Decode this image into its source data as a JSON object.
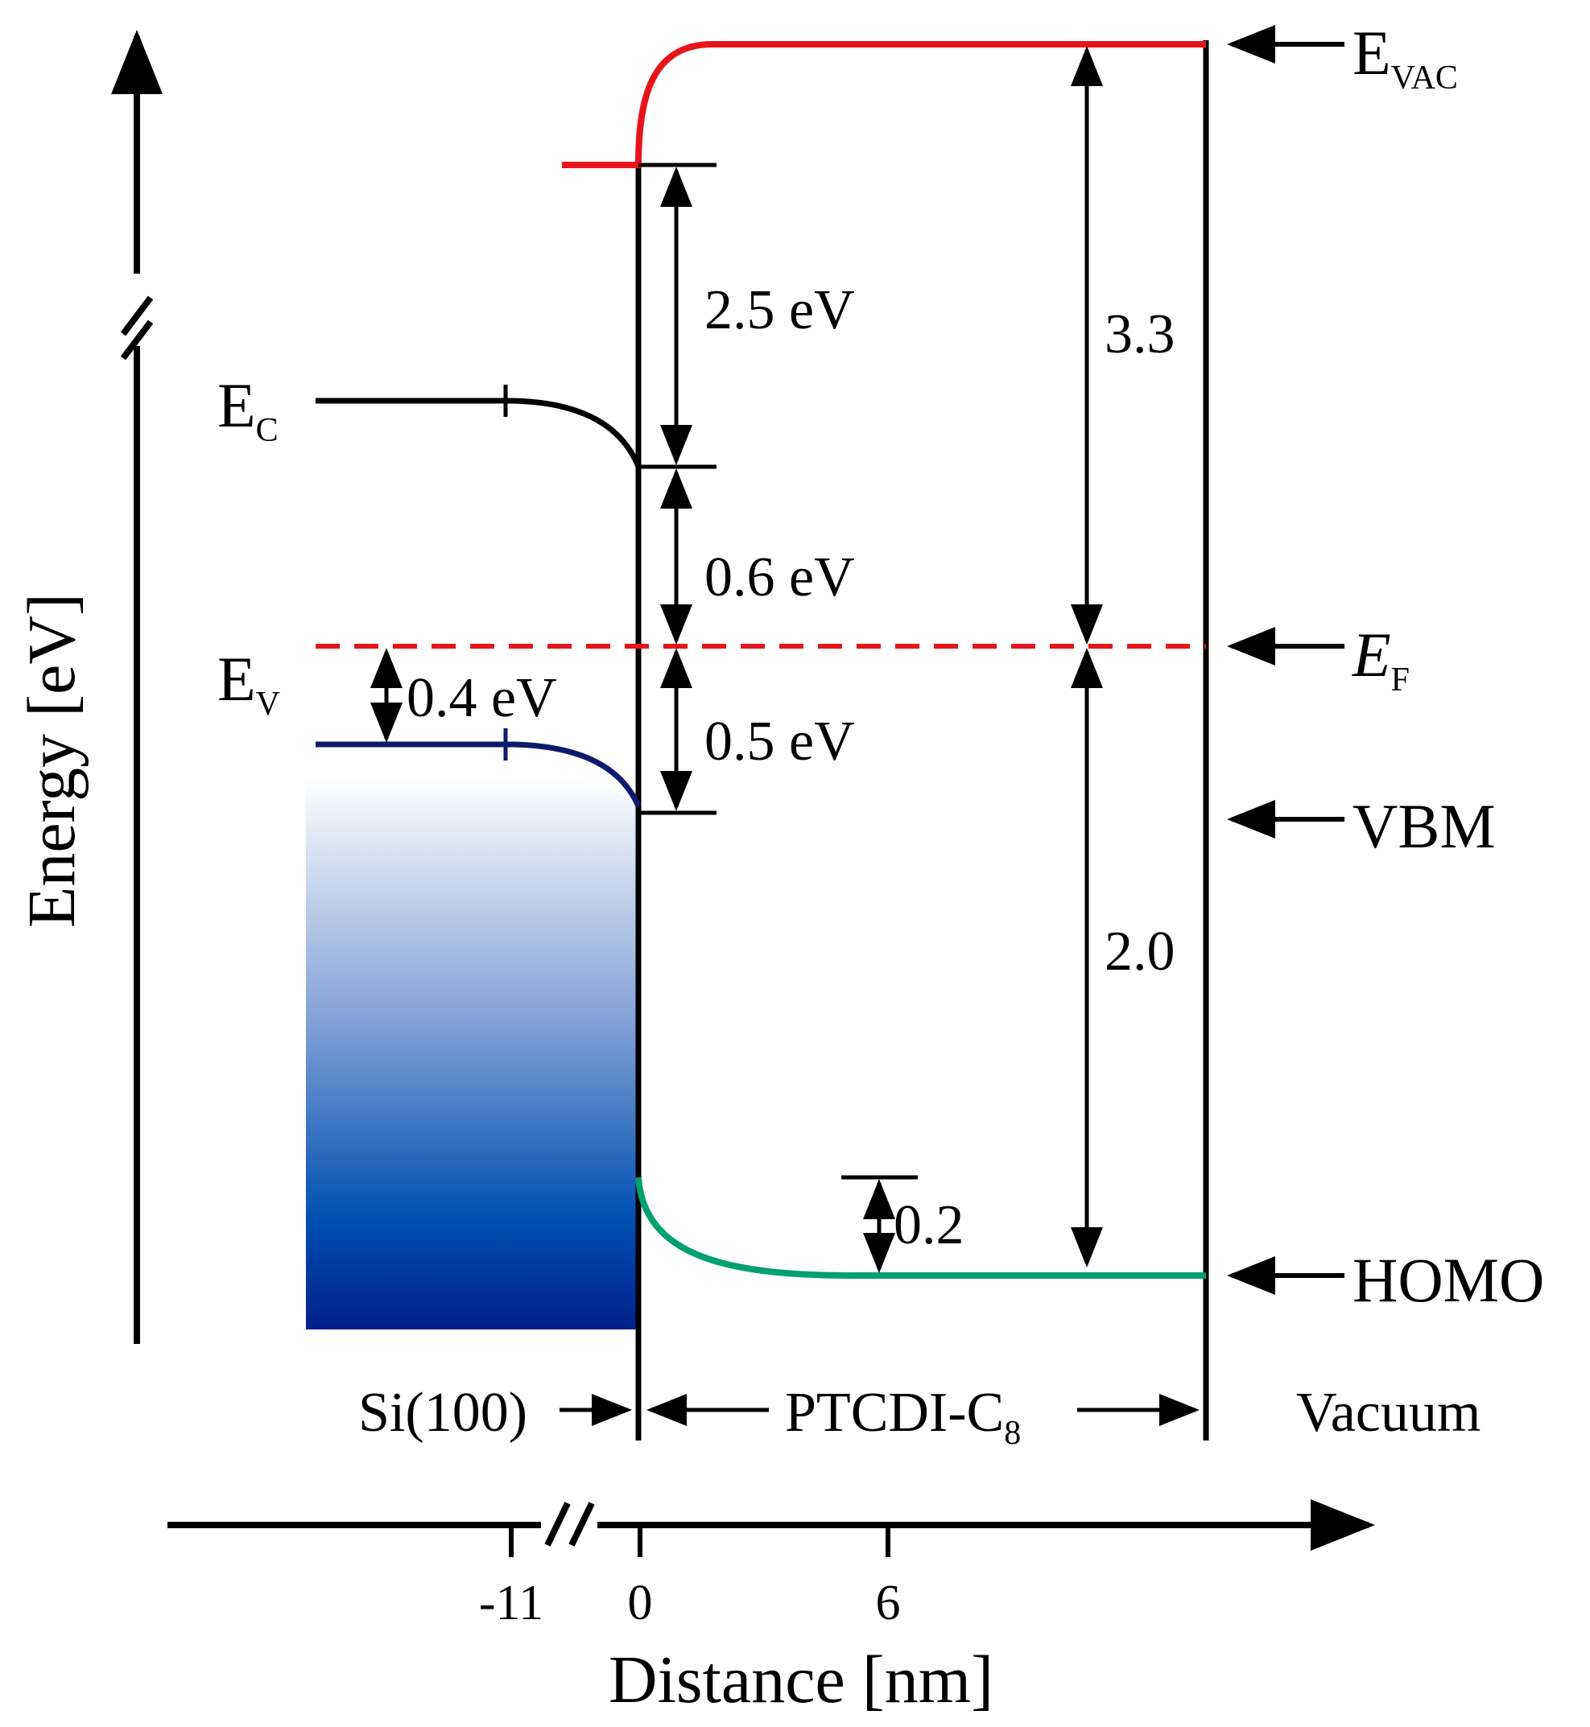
{
  "axes": {
    "y_title": "Energy [eV]",
    "x_title": "Distance [nm]",
    "x_ticks": [
      "-11",
      "0",
      "6"
    ]
  },
  "levels": {
    "e_vac": {
      "main": "E",
      "sub": "VAC"
    },
    "e_c": {
      "main": "E",
      "sub": "C"
    },
    "e_v": {
      "main": "E",
      "sub": "V"
    },
    "e_f": {
      "main": "E",
      "sub": "F"
    },
    "vbm": "VBM",
    "homo": "HOMO"
  },
  "gaps": {
    "g_2_5": "2.5 eV",
    "g_0_6": "0.6 eV",
    "g_0_5": "0.5 eV",
    "g_0_4": "0.4 eV",
    "g_3_3": "3.3",
    "g_2_0": "2.0",
    "g_0_2": "0.2"
  },
  "regions": {
    "si": "Si(100)",
    "ptcdi": {
      "main": "PTCDI-C",
      "sub": "8"
    },
    "vacuum": "Vacuum"
  },
  "colors": {
    "vacuum_level": "#e8141b",
    "fermi_level": "#e8141b",
    "valence_band": "#0d1a6b",
    "homo_level": "#00a070",
    "band_fill_top": "#ffffff",
    "band_fill_bottom": "#00208a"
  }
}
